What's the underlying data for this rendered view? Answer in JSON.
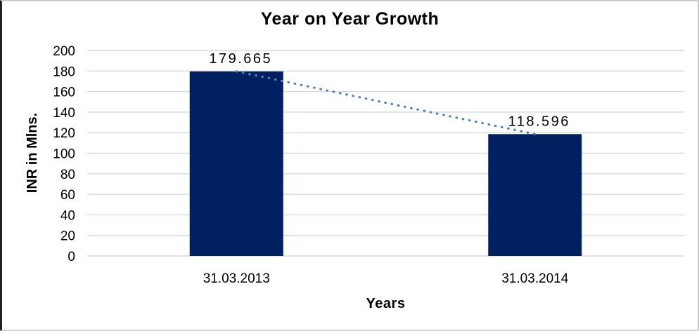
{
  "chart_data": {
    "type": "bar",
    "title": "Year on Year Growth",
    "categories": [
      "31.03.2013",
      "31.03.2014"
    ],
    "values": [
      179.665,
      118.596
    ],
    "data_labels": [
      "179.665",
      "118.596"
    ],
    "xlabel": "Years",
    "ylabel": "INR in Mlns.",
    "ylim": [
      0,
      200
    ],
    "yticks": [
      0,
      20,
      40,
      60,
      80,
      100,
      120,
      140,
      160,
      180,
      200
    ],
    "grid": true,
    "legend": "none",
    "trendline": {
      "type": "linear",
      "style": "dotted"
    },
    "colors": {
      "bar": "#002060",
      "trendline": "#4F81BD",
      "gridline": "#D9D9D9",
      "text": "#000000"
    }
  }
}
